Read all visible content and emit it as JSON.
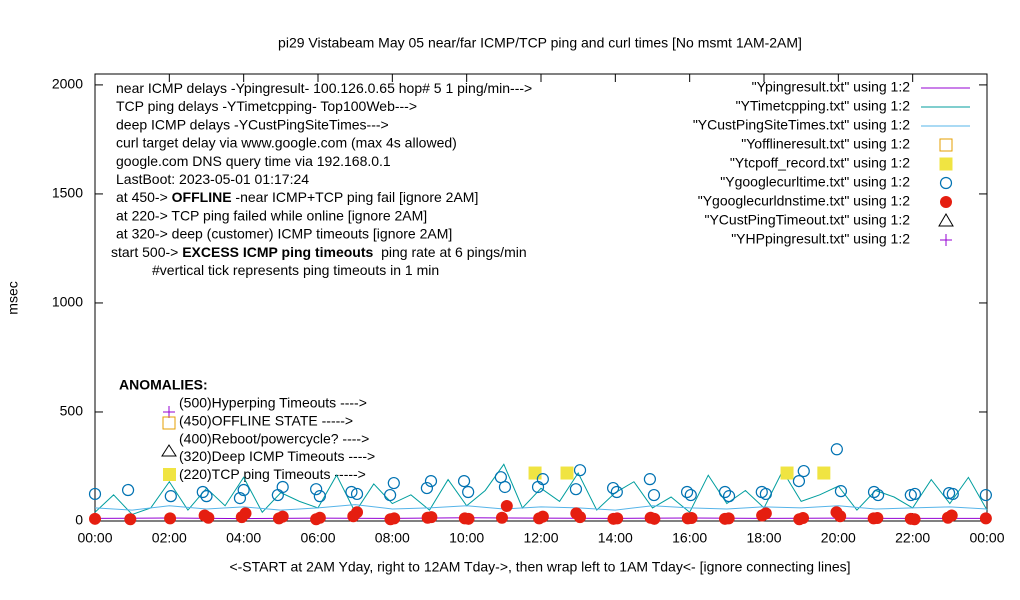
{
  "chart_data": {
    "type": "line",
    "title": "pi29 Vistabeam May 05  near/far ICMP/TCP ping and curl times [No msmt 1AM-2AM]",
    "xlabel": "<-START at 2AM Yday, right to 12AM Tday->, then wrap left to 1AM Tday<- [ignore connecting lines]",
    "ylabel": "msec",
    "xlim": [
      0,
      24
    ],
    "ylim": [
      0,
      2050
    ],
    "xticks": [
      {
        "value": 0,
        "label": "00:00"
      },
      {
        "value": 2,
        "label": "02:00"
      },
      {
        "value": 4,
        "label": "04:00"
      },
      {
        "value": 6,
        "label": "06:00"
      },
      {
        "value": 8,
        "label": "08:00"
      },
      {
        "value": 10,
        "label": "10:00"
      },
      {
        "value": 12,
        "label": "12:00"
      },
      {
        "value": 14,
        "label": "14:00"
      },
      {
        "value": 16,
        "label": "16:00"
      },
      {
        "value": 18,
        "label": "18:00"
      },
      {
        "value": 20,
        "label": "20:00"
      },
      {
        "value": 22,
        "label": "22:00"
      },
      {
        "value": 24,
        "label": "00:00"
      }
    ],
    "yticks": [
      0,
      500,
      1000,
      1500,
      2000
    ],
    "grid": false,
    "legend": "top-right",
    "annotations": [
      [
        {
          "text": "near ICMP delays -Ypingresult- 100.126.0.65 hop# 5 1 ping/min--->"
        }
      ],
      [
        {
          "text": "TCP ping delays -YTimetcpping- Top100Web--->"
        }
      ],
      [
        {
          "text": "deep ICMP delays -YCustPingSiteTimes--->"
        }
      ],
      [
        {
          "text": "curl target delay via www.google.com (max 4s allowed)"
        }
      ],
      [
        {
          "text": "google.com DNS query time via 192.168.0.1"
        }
      ],
      [
        {
          "text": "LastBoot: 2023-05-01 01:17:24"
        }
      ],
      [
        {
          "text": "at 450-> "
        },
        {
          "text": "OFFLINE",
          "bold": true
        },
        {
          "text": " -near ICMP+TCP ping fail [ignore 2AM]"
        }
      ],
      [
        {
          "text": "at 220-> TCP ping failed while online [ignore 2AM]"
        }
      ],
      [
        {
          "text": "at 320-> deep (customer) ICMP timeouts [ignore 2AM]"
        }
      ],
      [
        {
          "text": "start 500-> "
        },
        {
          "text": "EXCESS ICMP ping timeouts",
          "bold": true
        },
        {
          "text": "  ping rate at 6 pings/min"
        }
      ],
      [
        {
          "text": "#vertical tick represents ping timeouts in 1 min"
        }
      ]
    ],
    "anomalies_title": "ANOMALIES:",
    "anomalies": [
      "(500)Hyperping Timeouts ---->",
      "(450)OFFLINE STATE ----->",
      "(400)Reboot/powercycle? ---->",
      "(320)Deep ICMP Timeouts ---->",
      "(220)TCP ping Timeouts ----->"
    ],
    "series": [
      {
        "name": "\"Ypingresult.txt\" using 1:2",
        "style": "line",
        "color": "#9400d3",
        "x": [
          0,
          2,
          4,
          6,
          8,
          10,
          12,
          14,
          16,
          18,
          20,
          22,
          24
        ],
        "values": [
          12,
          14,
          11,
          13,
          12,
          15,
          13,
          12,
          14,
          12,
          13,
          12,
          12
        ]
      },
      {
        "name": "\"YTimetcpping.txt\" using 1:2",
        "style": "line",
        "color": "#009e9e",
        "x": [
          0,
          0.5,
          1,
          1.5,
          2,
          2.5,
          3,
          3.5,
          4,
          4.5,
          5,
          5.5,
          6,
          6.5,
          7,
          7.5,
          8,
          8.5,
          9,
          9.5,
          10,
          10.5,
          11,
          11.5,
          12,
          12.5,
          13,
          13.5,
          14,
          14.5,
          15,
          15.5,
          16,
          16.5,
          17,
          17.5,
          18,
          18.5,
          19,
          19.5,
          20,
          20.5,
          21,
          21.5,
          22,
          22.5,
          23,
          23.5,
          24
        ],
        "values": [
          40,
          120,
          30,
          60,
          180,
          50,
          150,
          70,
          200,
          40,
          130,
          90,
          60,
          210,
          40,
          170,
          80,
          120,
          50,
          190,
          70,
          140,
          260,
          60,
          150,
          90,
          220,
          50,
          130,
          180,
          60,
          110,
          40,
          210,
          80,
          140,
          60,
          230,
          90,
          120,
          160,
          50,
          140,
          110,
          60,
          190,
          80,
          200,
          50
        ]
      },
      {
        "name": "\"YCustPingSiteTimes.txt\" using 1:2",
        "style": "line",
        "color": "#56b4e9",
        "x": [
          0,
          1,
          2,
          3,
          4,
          5,
          6,
          7,
          8,
          9,
          10,
          11,
          12,
          13,
          14,
          15,
          16,
          17,
          18,
          19,
          20,
          21,
          22,
          23,
          24
        ],
        "values": [
          60,
          50,
          70,
          55,
          65,
          50,
          60,
          75,
          55,
          60,
          70,
          55,
          65,
          60,
          50,
          70,
          60,
          55,
          65,
          60,
          70,
          55,
          60,
          65,
          55
        ]
      },
      {
        "name": "\"Yofflineresult.txt\" using 1:2",
        "style": "square-open",
        "color": "#e69f00",
        "x": [],
        "values": []
      },
      {
        "name": "\"Ytcpoff_record.txt\" using 1:2",
        "style": "square-filled",
        "color": "#f0e442",
        "x": [
          11.84,
          12.7,
          18.62,
          19.61
        ],
        "values": [
          220,
          220,
          220,
          220
        ]
      },
      {
        "name": "\"Ygooglecurltime.txt\" using 1:2",
        "style": "circle-open",
        "color": "#0072b2",
        "x": [
          0,
          0.89,
          2.04,
          2.9,
          3.0,
          3.9,
          4.0,
          4.92,
          5.05,
          5.95,
          6.05,
          6.9,
          7.05,
          7.94,
          8.04,
          8.93,
          9.04,
          9.93,
          10.04,
          10.92,
          11.03,
          11.92,
          12.05,
          12.94,
          13.05,
          13.94,
          14.04,
          14.93,
          15.04,
          15.93,
          16.03,
          16.95,
          17.06,
          17.94,
          18.05,
          18.94,
          19.07,
          19.96,
          20.07,
          20.96,
          21.07,
          21.95,
          22.06,
          22.98,
          23.08,
          23.97
        ],
        "values": [
          124,
          142,
          114,
          133,
          114,
          105,
          142,
          119,
          156,
          146,
          114,
          133,
          124,
          119,
          174,
          151,
          183,
          183,
          133,
          201,
          156,
          156,
          192,
          146,
          233,
          151,
          133,
          192,
          119,
          133,
          119,
          133,
          114,
          133,
          124,
          183,
          229,
          329,
          137,
          133,
          119,
          119,
          124,
          128,
          124,
          119
        ]
      },
      {
        "name": "\"Ygooglecurldnstime.txt\" using 1:2",
        "style": "circle-filled",
        "color": "#e51e10",
        "x": [
          0,
          0.95,
          2.02,
          2.95,
          3.05,
          3.95,
          4.05,
          4.95,
          5.05,
          5.95,
          6.05,
          6.95,
          7.05,
          7.95,
          8.05,
          8.95,
          9.05,
          9.95,
          10.05,
          10.95,
          11.08,
          11.95,
          12.05,
          12.95,
          13.05,
          13.95,
          14.05,
          14.95,
          15.05,
          15.95,
          16.05,
          16.95,
          17.05,
          17.95,
          18.05,
          18.95,
          19.05,
          19.95,
          20.05,
          20.95,
          21.05,
          21.95,
          22.05,
          22.95,
          23.05,
          23.97
        ],
        "values": [
          10,
          8,
          12,
          25,
          15,
          18,
          35,
          12,
          20,
          8,
          15,
          22,
          40,
          8,
          12,
          15,
          18,
          12,
          10,
          15,
          69,
          12,
          20,
          35,
          18,
          10,
          12,
          15,
          10,
          12,
          14,
          10,
          12,
          25,
          35,
          8,
          14,
          40,
          22,
          12,
          14,
          10,
          8,
          15,
          25,
          12
        ]
      },
      {
        "name": "\"YCustPingTimeout.txt\" using 1:2",
        "style": "triangle",
        "color": "#000000",
        "x": [],
        "values": []
      },
      {
        "name": "\"YHPpingresult.txt\" using 1:2",
        "style": "plus",
        "color": "#9400d3",
        "x": [],
        "values": []
      }
    ]
  }
}
